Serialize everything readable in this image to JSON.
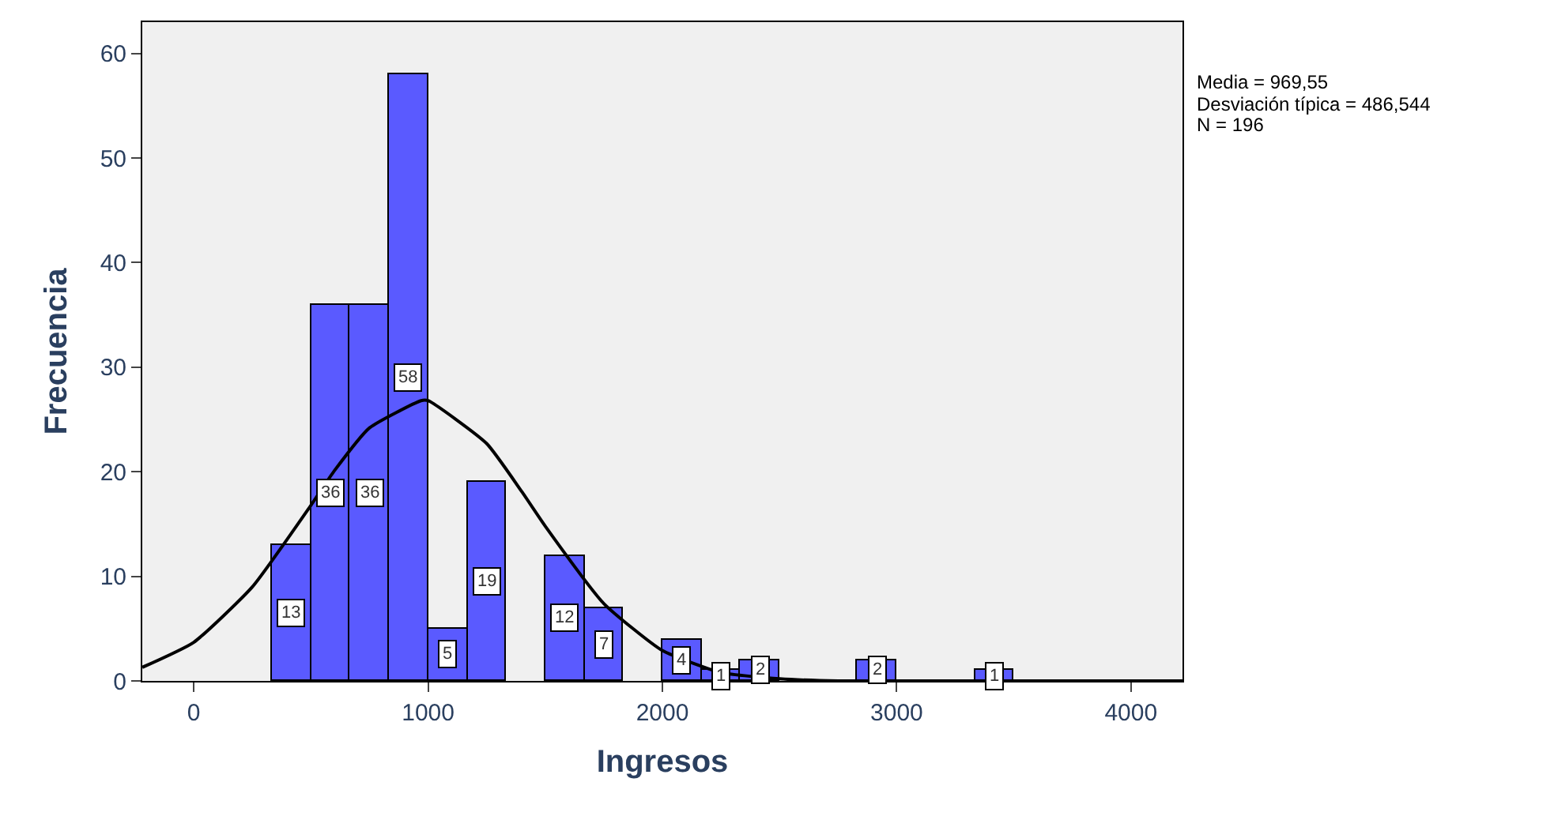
{
  "chart_data": {
    "type": "histogram",
    "xlabel": "Ingresos",
    "ylabel": "Frecuencia",
    "xlim": [
      -220,
      4220
    ],
    "ylim": [
      0,
      63
    ],
    "xticks": [
      0,
      1000,
      2000,
      3000,
      4000
    ],
    "yticks": [
      0,
      10,
      20,
      30,
      40,
      50,
      60
    ],
    "grid": false,
    "series": [
      {
        "color": "#5a5aff",
        "bins": [
          333.3,
          500,
          666.7,
          833.3,
          1000,
          1166.7,
          1333.3,
          1500,
          1666.7,
          1833.3,
          2000,
          2166.7,
          2333.3,
          2500,
          2666.7,
          2833.3,
          3000,
          3166.7,
          3333.3,
          3500
        ],
        "values": [
          13,
          36,
          36,
          58,
          5,
          19,
          0,
          12,
          7,
          0,
          4,
          1,
          2,
          0,
          0,
          2,
          0,
          0,
          1
        ],
        "value_labels": [
          "13",
          "36",
          "36",
          "58",
          "5",
          "19",
          null,
          "12",
          "7",
          null,
          "4",
          "1",
          "2",
          null,
          null,
          "2",
          null,
          null,
          "1"
        ]
      },
      {
        "type": "line",
        "color": "#000000",
        "x": [
          -220,
          0,
          250,
          500,
          600,
          750,
          970,
          1000,
          1250,
          1400,
          1500,
          1750,
          2000,
          2250,
          2500,
          2750,
          3000,
          3500,
          4220
        ],
        "values": [
          1.3,
          3.7,
          9.0,
          16.8,
          20.1,
          24.2,
          26.8,
          26.8,
          22.7,
          18.1,
          14.8,
          7.4,
          2.9,
          0.8,
          0.2,
          0,
          0,
          0,
          0
        ]
      }
    ],
    "annotations": [
      "Media = 969,55",
      "Desviación típica = 486,544",
      "N = 196"
    ]
  }
}
